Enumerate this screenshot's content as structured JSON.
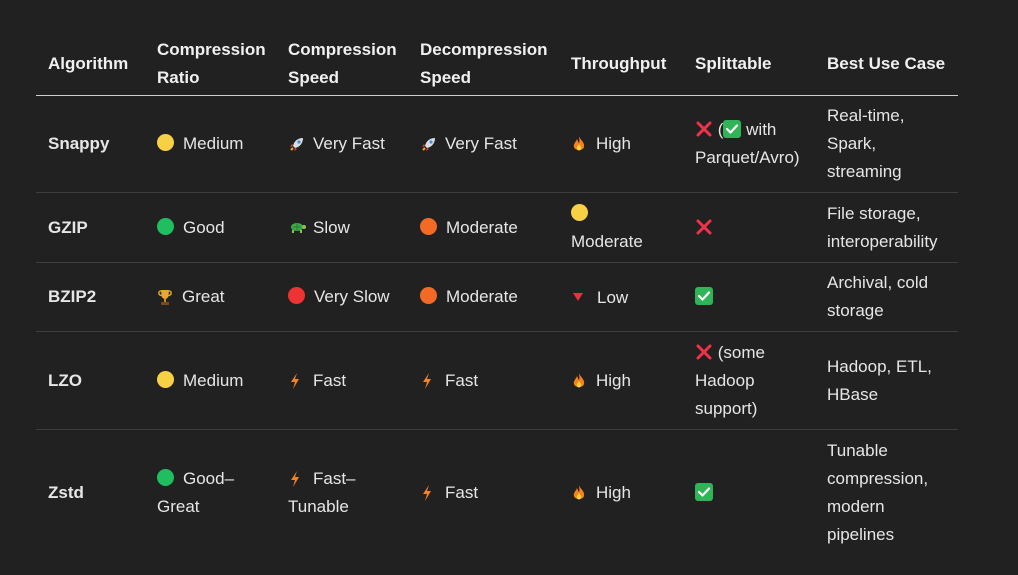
{
  "headers": {
    "algorithm": "Algorithm",
    "compression_ratio": "Compression Ratio",
    "compression_speed": "Compression Speed",
    "decompression_speed": "Decompression Speed",
    "throughput": "Throughput",
    "splittable": "Splittable",
    "best_use_case": "Best Use Case"
  },
  "rows": [
    {
      "algorithm": "Snappy",
      "ratio": {
        "icon": "yellow-circle",
        "text": "Medium"
      },
      "comp_speed": {
        "icon": "rocket",
        "text": "Very Fast"
      },
      "decomp_speed": {
        "icon": "rocket",
        "text": "Very Fast"
      },
      "throughput": {
        "icon": "fire",
        "text": "High"
      },
      "splittable": {
        "icon": "cross-mark",
        "pre": "(",
        "icon2": "check-mark",
        "text": "with Parquet/Avro)"
      },
      "use_case": "Real-time, Spark, streaming"
    },
    {
      "algorithm": "GZIP",
      "ratio": {
        "icon": "green-circle",
        "text": "Good"
      },
      "comp_speed": {
        "icon": "turtle",
        "text": "Slow"
      },
      "decomp_speed": {
        "icon": "orange-circle",
        "text": "Moderate"
      },
      "throughput": {
        "icon": "yellow-circle",
        "text": "Moderate"
      },
      "splittable": {
        "icon": "cross-mark",
        "text": ""
      },
      "use_case": "File storage, interoperability"
    },
    {
      "algorithm": "BZIP2",
      "ratio": {
        "icon": "trophy",
        "text": "Great"
      },
      "comp_speed": {
        "icon": "red-circle",
        "text": "Very Slow"
      },
      "decomp_speed": {
        "icon": "orange-circle",
        "text": "Moderate"
      },
      "throughput": {
        "icon": "red-triangle-down",
        "text": "Low"
      },
      "splittable": {
        "icon": "check-mark",
        "text": ""
      },
      "use_case": "Archival, cold storage"
    },
    {
      "algorithm": "LZO",
      "ratio": {
        "icon": "yellow-circle",
        "text": "Medium"
      },
      "comp_speed": {
        "icon": "lightning",
        "text": "Fast"
      },
      "decomp_speed": {
        "icon": "lightning",
        "text": "Fast"
      },
      "throughput": {
        "icon": "fire",
        "text": "High"
      },
      "splittable": {
        "icon": "cross-mark",
        "text": "(some Hadoop support)"
      },
      "use_case": "Hadoop, ETL, HBase"
    },
    {
      "algorithm": "Zstd",
      "ratio": {
        "icon": "green-circle",
        "text": "Good–Great"
      },
      "comp_speed": {
        "icon": "lightning",
        "text": "Fast–Tunable"
      },
      "decomp_speed": {
        "icon": "lightning",
        "text": "Fast"
      },
      "throughput": {
        "icon": "fire",
        "text": "High"
      },
      "splittable": {
        "icon": "check-mark",
        "text": ""
      },
      "use_case": "Tunable compression, modern pipelines"
    }
  ],
  "colors": {
    "background": "#212121",
    "text": "#ececec",
    "header_rule": "#cfcfcf",
    "row_rule": "#3d3d3d"
  }
}
